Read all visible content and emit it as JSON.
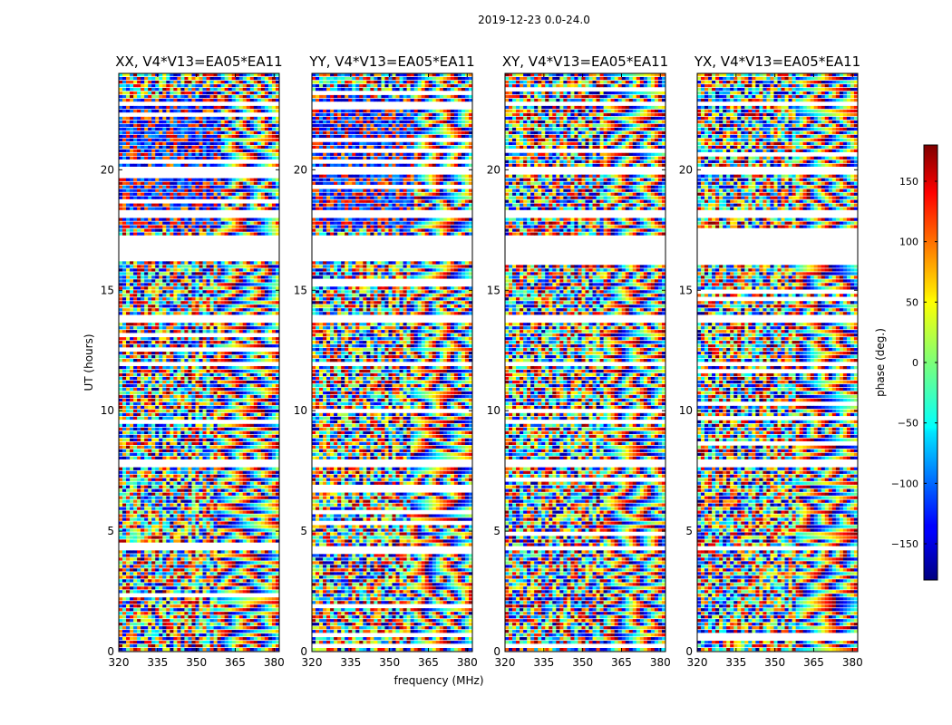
{
  "chart_data": {
    "type": "heatmap",
    "suptitle": "2019-12-23 0.0-24.0",
    "xlabel": "frequency (MHz)",
    "ylabel": "UT (hours)",
    "xlim": [
      320,
      382
    ],
    "ylim": [
      0,
      24
    ],
    "xticks": [
      320,
      335,
      350,
      365,
      380
    ],
    "yticks": [
      0,
      5,
      10,
      15,
      20
    ],
    "panels": [
      {
        "title": "XX, V4*V13=EA05*EA11",
        "pol": "XX"
      },
      {
        "title": "YY, V4*V13=EA05*EA11",
        "pol": "YY"
      },
      {
        "title": "XY, V4*V13=EA05*EA11",
        "pol": "XY"
      },
      {
        "title": "YX, V4*V13=EA05*EA11",
        "pol": "YX"
      }
    ],
    "flagged_time_ranges_hours": [
      [
        16.2,
        17.3
      ],
      [
        18.0,
        18.3
      ],
      [
        19.8,
        20.1
      ],
      [
        13.7,
        14.0
      ],
      [
        11.8,
        12.0
      ],
      [
        10.6,
        10.7
      ],
      [
        7.7,
        7.9
      ],
      [
        4.2,
        4.3
      ],
      [
        1.3,
        1.4
      ],
      [
        22.6,
        22.8
      ]
    ],
    "colorbar": {
      "label": "phase (deg.)",
      "range": [
        -180,
        180
      ],
      "ticks": [
        150,
        100,
        50,
        0,
        -50,
        -100,
        -150
      ],
      "tick_labels": [
        "150",
        "100",
        "50",
        "0",
        "−50",
        "−100",
        "−150"
      ],
      "colormap": "jet"
    }
  }
}
